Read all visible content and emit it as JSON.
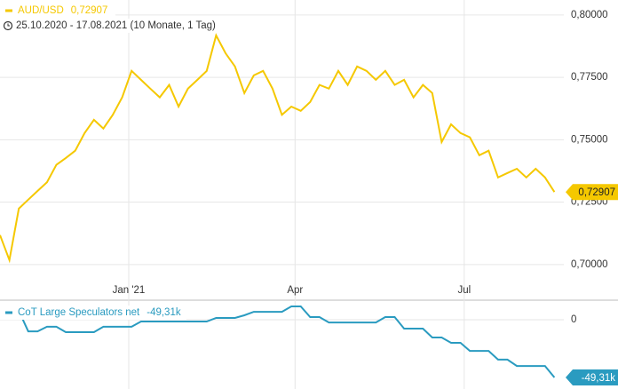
{
  "chart_data": [
    {
      "type": "line",
      "title": "AUD/USD",
      "subtitle": "25.10.2020 - 17.08.2021  (10 Monate, 1 Tag)",
      "xlim": [
        0,
        60
      ],
      "xticks": [
        {
          "value": 13.7,
          "label": "Jan '21"
        },
        {
          "value": 31.4,
          "label": "Apr"
        },
        {
          "value": 49.4,
          "label": "Jul"
        }
      ],
      "ylim": [
        0.6868,
        0.806
      ],
      "yticks": [
        {
          "value": 0.7,
          "label": "0,70000"
        },
        {
          "value": 0.725,
          "label": "0,72500"
        },
        {
          "value": 0.75,
          "label": "0,75000"
        },
        {
          "value": 0.775,
          "label": "0,77500"
        },
        {
          "value": 0.8,
          "label": "0,80000"
        }
      ],
      "grid": true,
      "series": [
        {
          "name": "AUD/USD",
          "color": "#f5c800",
          "last_label": "0,72907",
          "values": [
            0.7118,
            0.7018,
            0.7224,
            0.726,
            0.7295,
            0.733,
            0.74,
            0.7427,
            0.7456,
            0.7527,
            0.758,
            0.7545,
            0.76,
            0.767,
            0.7776,
            0.774,
            0.7705,
            0.767,
            0.772,
            0.7633,
            0.7705,
            0.774,
            0.7776,
            0.7918,
            0.7847,
            0.7794,
            0.7687,
            0.7758,
            0.7776,
            0.7705,
            0.76,
            0.7633,
            0.7616,
            0.7651,
            0.772,
            0.7705,
            0.7776,
            0.772,
            0.7794,
            0.7776,
            0.774,
            0.7776,
            0.772,
            0.774,
            0.767,
            0.772,
            0.7687,
            0.7491,
            0.7562,
            0.7527,
            0.751,
            0.7438,
            0.7456,
            0.7349,
            0.7367,
            0.7384,
            0.7349,
            0.7384,
            0.7349,
            0.72907
          ]
        }
      ]
    },
    {
      "type": "line",
      "xlim": [
        0,
        60
      ],
      "ylim": [
        -59.2,
        15.2
      ],
      "yticks": [
        0
      ],
      "grid": true,
      "series": [
        {
          "name": "CoT Large Speculators net",
          "color": "#2a9bc0",
          "last_label": "-49,31k",
          "values": [
            7.6,
            7.6,
            7.6,
            -9.9,
            -9.9,
            -6,
            -6,
            -10.6,
            -10.6,
            -10.6,
            -10.6,
            -6,
            -6,
            -6,
            -6,
            -1.5,
            -1.5,
            -1.5,
            -1.5,
            -1.5,
            -1.5,
            -1.5,
            -1.5,
            1.5,
            1.5,
            1.5,
            3.8,
            6.8,
            6.8,
            6.8,
            6.8,
            11.4,
            11.4,
            2.3,
            2.3,
            -2.3,
            -2.3,
            -2.3,
            -2.3,
            -2.3,
            -2.3,
            2.3,
            2.3,
            -7.6,
            -7.6,
            -7.6,
            -15.2,
            -15.2,
            -19.7,
            -19.7,
            -26.6,
            -26.6,
            -26.6,
            -34.1,
            -34.1,
            -39.5,
            -39.5,
            -39.5,
            -39.5,
            -49.31
          ]
        }
      ]
    }
  ]
}
